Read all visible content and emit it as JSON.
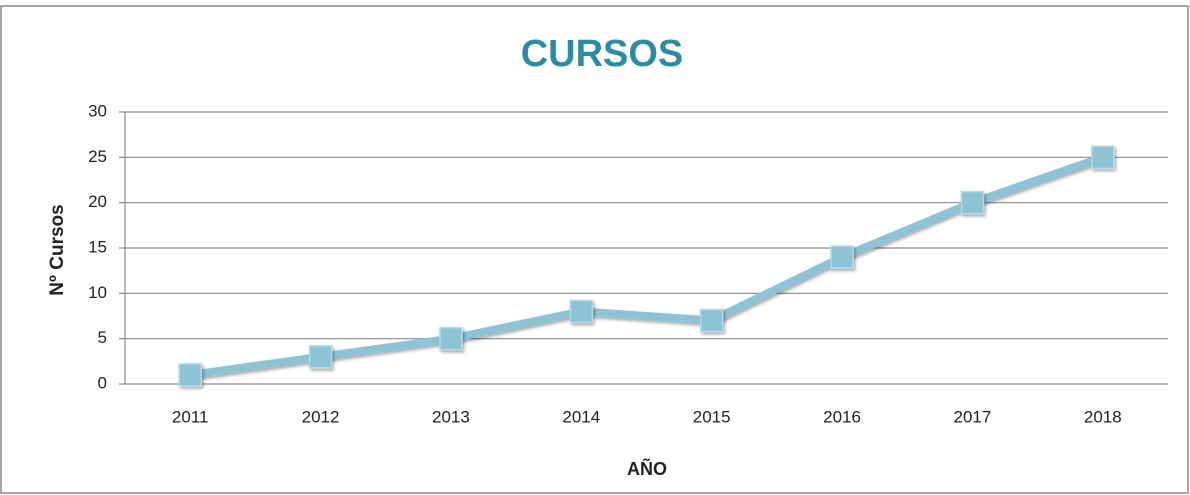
{
  "chart_data": {
    "type": "line",
    "title": "CURSOS",
    "x_label": "AÑO",
    "y_label": "Nº Cursos",
    "categories": [
      "2011",
      "2012",
      "2013",
      "2014",
      "2015",
      "2016",
      "2017",
      "2018"
    ],
    "series": [
      {
        "name": "Cursos",
        "color": "#8cc3d6",
        "values": [
          1,
          3,
          5,
          8,
          7,
          14,
          20,
          25
        ]
      }
    ],
    "ylim": [
      0,
      30
    ],
    "yticks": [
      0,
      5,
      10,
      15,
      20,
      25,
      30
    ],
    "grid": true
  }
}
